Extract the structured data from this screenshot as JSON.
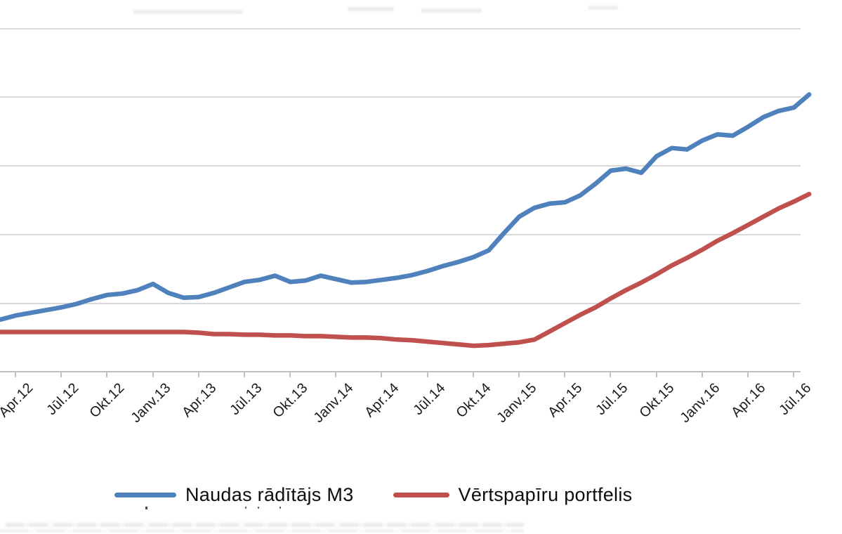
{
  "chart_data": {
    "type": "line",
    "title": "",
    "notes": "Chart is cropped: y-axis labels cut off at left edge, title cut off at top, first and last x labels partially cut. Values are expressed in horizontal-gridline units (0 = x-axis baseline, 5 = topmost visible gridline).",
    "x_tick_labels": [
      "Apr.12",
      "Jūl.12",
      "Okt.12",
      "Janv.13",
      "Apr.13",
      "Jūl.13",
      "Okt.13",
      "Janv.14",
      "Apr.14",
      "Jūl.14",
      "Okt.14",
      "Janv.15",
      "Apr.15",
      "Jūl.15",
      "Okt.15",
      "Janv.16",
      "Apr.16",
      "Jūl.16"
    ],
    "categories": [
      "2012-03",
      "2012-04",
      "2012-05",
      "2012-06",
      "2012-07",
      "2012-08",
      "2012-09",
      "2012-10",
      "2012-11",
      "2012-12",
      "2013-01",
      "2013-02",
      "2013-03",
      "2013-04",
      "2013-05",
      "2013-06",
      "2013-07",
      "2013-08",
      "2013-09",
      "2013-10",
      "2013-11",
      "2013-12",
      "2014-01",
      "2014-02",
      "2014-03",
      "2014-04",
      "2014-05",
      "2014-06",
      "2014-07",
      "2014-08",
      "2014-09",
      "2014-10",
      "2014-11",
      "2014-12",
      "2015-01",
      "2015-02",
      "2015-03",
      "2015-04",
      "2015-05",
      "2015-06",
      "2015-07",
      "2015-08",
      "2015-09",
      "2015-10",
      "2015-11",
      "2015-12",
      "2016-01",
      "2016-02",
      "2016-03",
      "2016-04",
      "2016-05",
      "2016-06",
      "2016-07",
      "2016-08"
    ],
    "series": [
      {
        "id": "m3",
        "name": "Naudas rādītājs M3",
        "color": "#4F81BD",
        "values": [
          0.76,
          0.82,
          0.86,
          0.9,
          0.94,
          0.99,
          1.06,
          1.12,
          1.14,
          1.19,
          1.28,
          1.15,
          1.08,
          1.09,
          1.15,
          1.23,
          1.31,
          1.34,
          1.4,
          1.31,
          1.33,
          1.4,
          1.35,
          1.3,
          1.31,
          1.34,
          1.37,
          1.41,
          1.47,
          1.54,
          1.6,
          1.67,
          1.77,
          2.02,
          2.26,
          2.39,
          2.45,
          2.47,
          2.57,
          2.74,
          2.93,
          2.96,
          2.9,
          3.14,
          3.26,
          3.24,
          3.37,
          3.46,
          3.44,
          3.57,
          3.71,
          3.8,
          3.85,
          4.04
        ]
      },
      {
        "id": "portfolio",
        "name": "Vērtspapīru portfelis",
        "color": "#C0504D",
        "values": [
          0.58,
          0.58,
          0.58,
          0.58,
          0.58,
          0.58,
          0.58,
          0.58,
          0.58,
          0.58,
          0.58,
          0.58,
          0.58,
          0.57,
          0.55,
          0.55,
          0.54,
          0.54,
          0.53,
          0.53,
          0.52,
          0.52,
          0.51,
          0.5,
          0.5,
          0.49,
          0.47,
          0.46,
          0.44,
          0.42,
          0.4,
          0.38,
          0.39,
          0.41,
          0.43,
          0.47,
          0.59,
          0.71,
          0.83,
          0.94,
          1.07,
          1.19,
          1.3,
          1.42,
          1.55,
          1.66,
          1.78,
          1.91,
          2.02,
          2.14,
          2.26,
          2.38,
          2.48,
          2.59
        ]
      }
    ],
    "y_axis": {
      "labels_visible": false,
      "min": 0,
      "max": 5,
      "gridline_count": 6,
      "grid_on": true
    },
    "x_axis": {
      "tick_interval": "quarterly",
      "first_label_partially_cut": "Apr.12",
      "last_label_partially_cut": "Jūl.16"
    },
    "legend_position": "bottom"
  },
  "legend": {
    "items": [
      {
        "label": "Naudas rādītājs M3",
        "color": "#4F81BD",
        "swatch_width": 88
      },
      {
        "label": "Vērtspapīru portfelis",
        "color": "#C0504D",
        "swatch_width": 80
      }
    ]
  },
  "colors": {
    "series_m3": "#4F81BD",
    "series_portfolio": "#C0504D",
    "gridline": "#D9D9D9",
    "axis": "#BFBFBF",
    "label_text": "#1a1a1a"
  }
}
